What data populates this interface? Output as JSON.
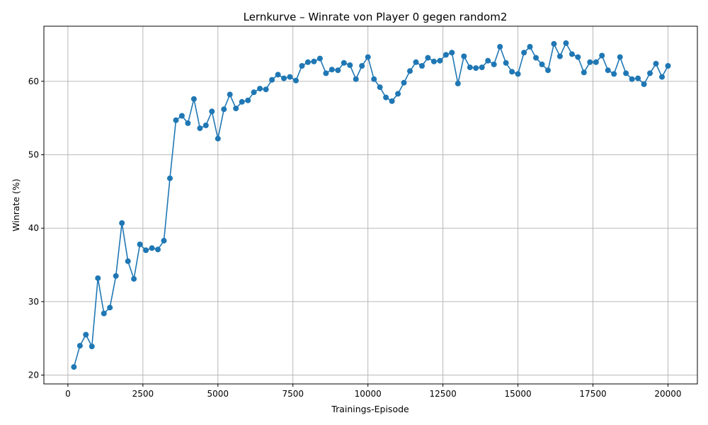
{
  "chart_data": {
    "type": "line",
    "title": "Lernkurve – Winrate von Player 0 gegen random2",
    "xlabel": "Trainings-Episode",
    "ylabel": "Winrate (%)",
    "xlim": [
      -800,
      20980
    ],
    "ylim": [
      18.8,
      67.5
    ],
    "xticks": [
      0,
      2500,
      5000,
      7500,
      10000,
      12500,
      15000,
      17500,
      20000
    ],
    "xtick_labels": [
      "0",
      "2500",
      "5000",
      "7500",
      "10000",
      "12500",
      "15000",
      "17500",
      "20000"
    ],
    "yticks": [
      20,
      30,
      40,
      50,
      60
    ],
    "ytick_labels": [
      "20",
      "30",
      "40",
      "50",
      "60"
    ],
    "grid": true,
    "marker": "circle",
    "color": "#1f77b4",
    "series": [
      {
        "x": [
          200,
          400,
          600,
          800,
          1000,
          1200,
          1400,
          1600,
          1800,
          2000,
          2200,
          2400,
          2600,
          2800,
          3000,
          3200,
          3400,
          3600,
          3800,
          4000,
          4200,
          4400,
          4600,
          4800,
          5000,
          5200,
          5400,
          5600,
          5800,
          6000,
          6200,
          6400,
          6600,
          6800,
          7000,
          7200,
          7400,
          7600,
          7800,
          8000,
          8200,
          8400,
          8600,
          8800,
          9000,
          9200,
          9400,
          9600,
          9800,
          10000,
          10200,
          10400,
          10600,
          10800,
          11000,
          11200,
          11400,
          11600,
          11800,
          12000,
          12200,
          12400,
          12600,
          12800,
          13000,
          13200,
          13400,
          13600,
          13800,
          14000,
          14200,
          14400,
          14600,
          14800,
          15000,
          15200,
          15400,
          15600,
          15800,
          16000,
          16200,
          16400,
          16600,
          16800,
          17000,
          17200,
          17400,
          17600,
          17800,
          18000,
          18200,
          18400,
          18600,
          18800,
          19000,
          19200,
          19400,
          19600,
          19800,
          20000
        ],
        "y": [
          21.1,
          24.0,
          25.5,
          23.9,
          33.2,
          28.4,
          29.2,
          33.5,
          40.7,
          35.5,
          33.1,
          37.8,
          37.0,
          37.3,
          37.1,
          38.3,
          46.8,
          54.7,
          55.3,
          54.3,
          57.6,
          53.6,
          54.0,
          55.9,
          52.2,
          56.2,
          58.2,
          56.3,
          57.2,
          57.4,
          58.5,
          59.0,
          58.9,
          60.2,
          60.9,
          60.4,
          60.6,
          60.1,
          62.1,
          62.6,
          62.7,
          63.1,
          61.1,
          61.6,
          61.5,
          62.5,
          62.2,
          60.3,
          62.1,
          63.3,
          60.3,
          59.2,
          57.8,
          57.3,
          58.3,
          59.8,
          61.4,
          62.6,
          62.1,
          63.2,
          62.7,
          62.8,
          63.6,
          63.9,
          59.7,
          63.4,
          61.9,
          61.8,
          61.9,
          62.8,
          62.3,
          64.7,
          62.5,
          61.3,
          61.0,
          63.9,
          64.7,
          63.2,
          62.3,
          61.5,
          65.1,
          63.4,
          65.2,
          63.7,
          63.3,
          61.2,
          62.6,
          62.6,
          63.5,
          61.5,
          61.0,
          63.3,
          61.1,
          60.3,
          60.4,
          59.6,
          61.1,
          62.4,
          60.6,
          62.1
        ]
      }
    ]
  }
}
